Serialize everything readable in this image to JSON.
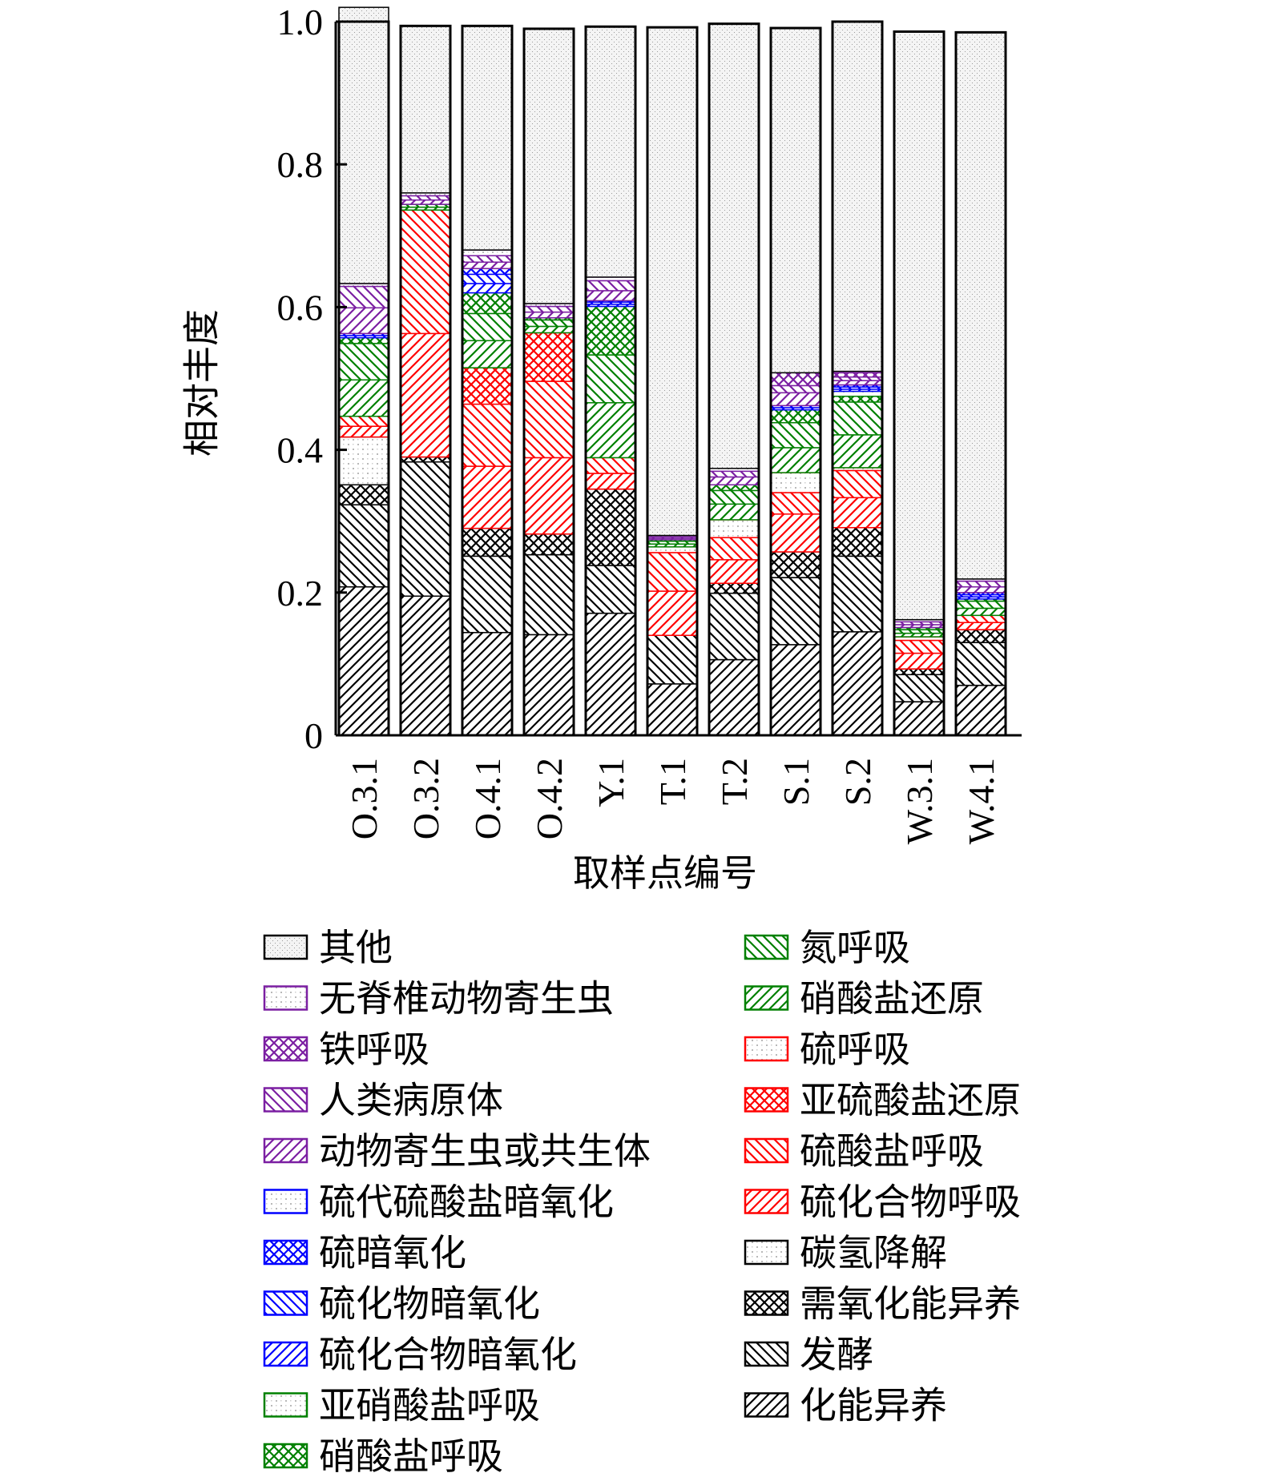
{
  "chart_data": {
    "type": "bar",
    "stacked": true,
    "ylabel": "相对丰度",
    "xlabel": "取样点编号",
    "ylim": [
      0,
      1.0
    ],
    "yticks": [
      "0",
      "0.2",
      "0.4",
      "0.6",
      "0.8",
      "1.0"
    ],
    "grid": false,
    "legend_position": "bottom",
    "categories": [
      "O.3.1",
      "O.3.2",
      "O.4.1",
      "O.4.2",
      "Y.1",
      "T.1",
      "T.2",
      "S.1",
      "S.2",
      "W.3.1",
      "W.4.1"
    ],
    "series": [
      {
        "name": "化能异养",
        "color": "#000000",
        "pattern": "fwd",
        "values": [
          0.208,
          0.195,
          0.144,
          0.141,
          0.171,
          0.072,
          0.106,
          0.127,
          0.145,
          0.047,
          0.07
        ]
      },
      {
        "name": "发酵",
        "color": "#000000",
        "pattern": "back",
        "values": [
          0.115,
          0.188,
          0.107,
          0.112,
          0.067,
          0.068,
          0.093,
          0.094,
          0.106,
          0.038,
          0.06
        ]
      },
      {
        "name": "需氧化能异养",
        "color": "#000000",
        "pattern": "cross",
        "values": [
          0.028,
          0.007,
          0.039,
          0.029,
          0.107,
          0.0,
          0.014,
          0.036,
          0.04,
          0.008,
          0.018
        ]
      },
      {
        "name": "碳氢降解",
        "color": "#000000",
        "pattern": "dots",
        "values": [
          0.067,
          0.0,
          0.0,
          0.0,
          0.0,
          0.0,
          0.0,
          0.0,
          0.0,
          0.0,
          0.0
        ]
      },
      {
        "name": "硫化合物呼吸",
        "color": "#ff0000",
        "pattern": "fwd",
        "values": [
          0.015,
          0.173,
          0.087,
          0.107,
          0.022,
          0.062,
          0.033,
          0.053,
          0.042,
          0.022,
          0.01
        ]
      },
      {
        "name": "硫酸盐呼吸",
        "color": "#ff0000",
        "pattern": "back",
        "values": [
          0.014,
          0.173,
          0.087,
          0.107,
          0.022,
          0.054,
          0.031,
          0.03,
          0.038,
          0.018,
          0.01
        ]
      },
      {
        "name": "亚硫酸盐还原",
        "color": "#ff0000",
        "pattern": "cross",
        "values": [
          0.0,
          0.0,
          0.051,
          0.068,
          0.0,
          0.0,
          0.0,
          0.0,
          0.0,
          0.0,
          0.0
        ]
      },
      {
        "name": "硫呼吸",
        "color": "#ff0000",
        "pattern": "dots",
        "values": [
          0.0,
          0.0,
          0.0,
          0.0,
          0.0,
          0.008,
          0.025,
          0.028,
          0.004,
          0.005,
          0.0
        ]
      },
      {
        "name": "硝酸盐还原",
        "color": "#008000",
        "pattern": "fwd",
        "values": [
          0.051,
          0.004,
          0.038,
          0.009,
          0.077,
          0.004,
          0.022,
          0.035,
          0.046,
          0.005,
          0.01
        ]
      },
      {
        "name": "氮呼吸",
        "color": "#008000",
        "pattern": "back",
        "values": [
          0.051,
          0.004,
          0.038,
          0.009,
          0.067,
          0.004,
          0.019,
          0.035,
          0.046,
          0.005,
          0.01
        ]
      },
      {
        "name": "硝酸盐呼吸",
        "color": "#008000",
        "pattern": "cross",
        "values": [
          0.008,
          0.0,
          0.029,
          0.003,
          0.068,
          0.002,
          0.008,
          0.018,
          0.008,
          0.003,
          0.003
        ]
      },
      {
        "name": "亚硝酸盐呼吸",
        "color": "#008000",
        "pattern": "dots",
        "values": [
          0.0,
          0.0,
          0.0,
          0.0,
          0.0,
          0.0,
          0.0,
          0.0,
          0.007,
          0.0,
          0.0
        ]
      },
      {
        "name": "硫化合物暗氧化",
        "color": "#0000ff",
        "pattern": "fwd",
        "values": [
          0.003,
          0.0,
          0.013,
          0.0,
          0.003,
          0.0,
          0.0,
          0.003,
          0.003,
          0.0,
          0.003
        ]
      },
      {
        "name": "硫化物暗氧化",
        "color": "#0000ff",
        "pattern": "back",
        "values": [
          0.003,
          0.0,
          0.013,
          0.0,
          0.003,
          0.0,
          0.0,
          0.003,
          0.003,
          0.0,
          0.003
        ]
      },
      {
        "name": "硫暗氧化",
        "color": "#0000ff",
        "pattern": "cross",
        "values": [
          0.0,
          0.0,
          0.008,
          0.0,
          0.002,
          0.0,
          0.0,
          0.0,
          0.003,
          0.0,
          0.003
        ]
      },
      {
        "name": "硫代硫酸盐暗氧化",
        "color": "#0000ff",
        "pattern": "dots",
        "values": [
          0.0,
          0.0,
          0.0,
          0.0,
          0.0,
          0.0,
          0.0,
          0.0,
          0.0,
          0.0,
          0.0
        ]
      },
      {
        "name": "动物寄生虫或共生体",
        "color": "#7b1fa2",
        "pattern": "fwd",
        "values": [
          0.036,
          0.006,
          0.009,
          0.008,
          0.014,
          0.002,
          0.011,
          0.018,
          0.006,
          0.004,
          0.008
        ]
      },
      {
        "name": "人类病原体",
        "color": "#7b1fa2",
        "pattern": "back",
        "values": [
          0.03,
          0.006,
          0.009,
          0.008,
          0.014,
          0.002,
          0.008,
          0.01,
          0.005,
          0.004,
          0.008
        ]
      },
      {
        "name": "铁呼吸",
        "color": "#7b1fa2",
        "pattern": "cross",
        "values": [
          0.0,
          0.0,
          0.0,
          0.0,
          0.0,
          0.0,
          0.0,
          0.018,
          0.006,
          0.0,
          0.0
        ]
      },
      {
        "name": "无脊椎动物寄生虫",
        "color": "#7b1fa2",
        "pattern": "dots",
        "values": [
          0.004,
          0.004,
          0.008,
          0.004,
          0.005,
          0.002,
          0.004,
          0.0,
          0.002,
          0.003,
          0.003
        ]
      },
      {
        "name": "其他",
        "color": "#000000",
        "pattern": "other",
        "values": [
          0.387,
          0.234,
          0.314,
          0.385,
          0.351,
          0.712,
          0.623,
          0.483,
          0.49,
          0.824,
          0.766
        ]
      }
    ],
    "legend": {
      "left": [
        "其他",
        "无脊椎动物寄生虫",
        "铁呼吸",
        "人类病原体",
        "动物寄生虫或共生体",
        "硫代硫酸盐暗氧化",
        "硫暗氧化",
        "硫化物暗氧化",
        "硫化合物暗氧化",
        "亚硝酸盐呼吸",
        "硝酸盐呼吸"
      ],
      "right": [
        "氮呼吸",
        "硝酸盐还原",
        "硫呼吸",
        "亚硫酸盐还原",
        "硫酸盐呼吸",
        "硫化合物呼吸",
        "碳氢降解",
        "需氧化能异养",
        "发酵",
        "化能异养"
      ]
    }
  }
}
